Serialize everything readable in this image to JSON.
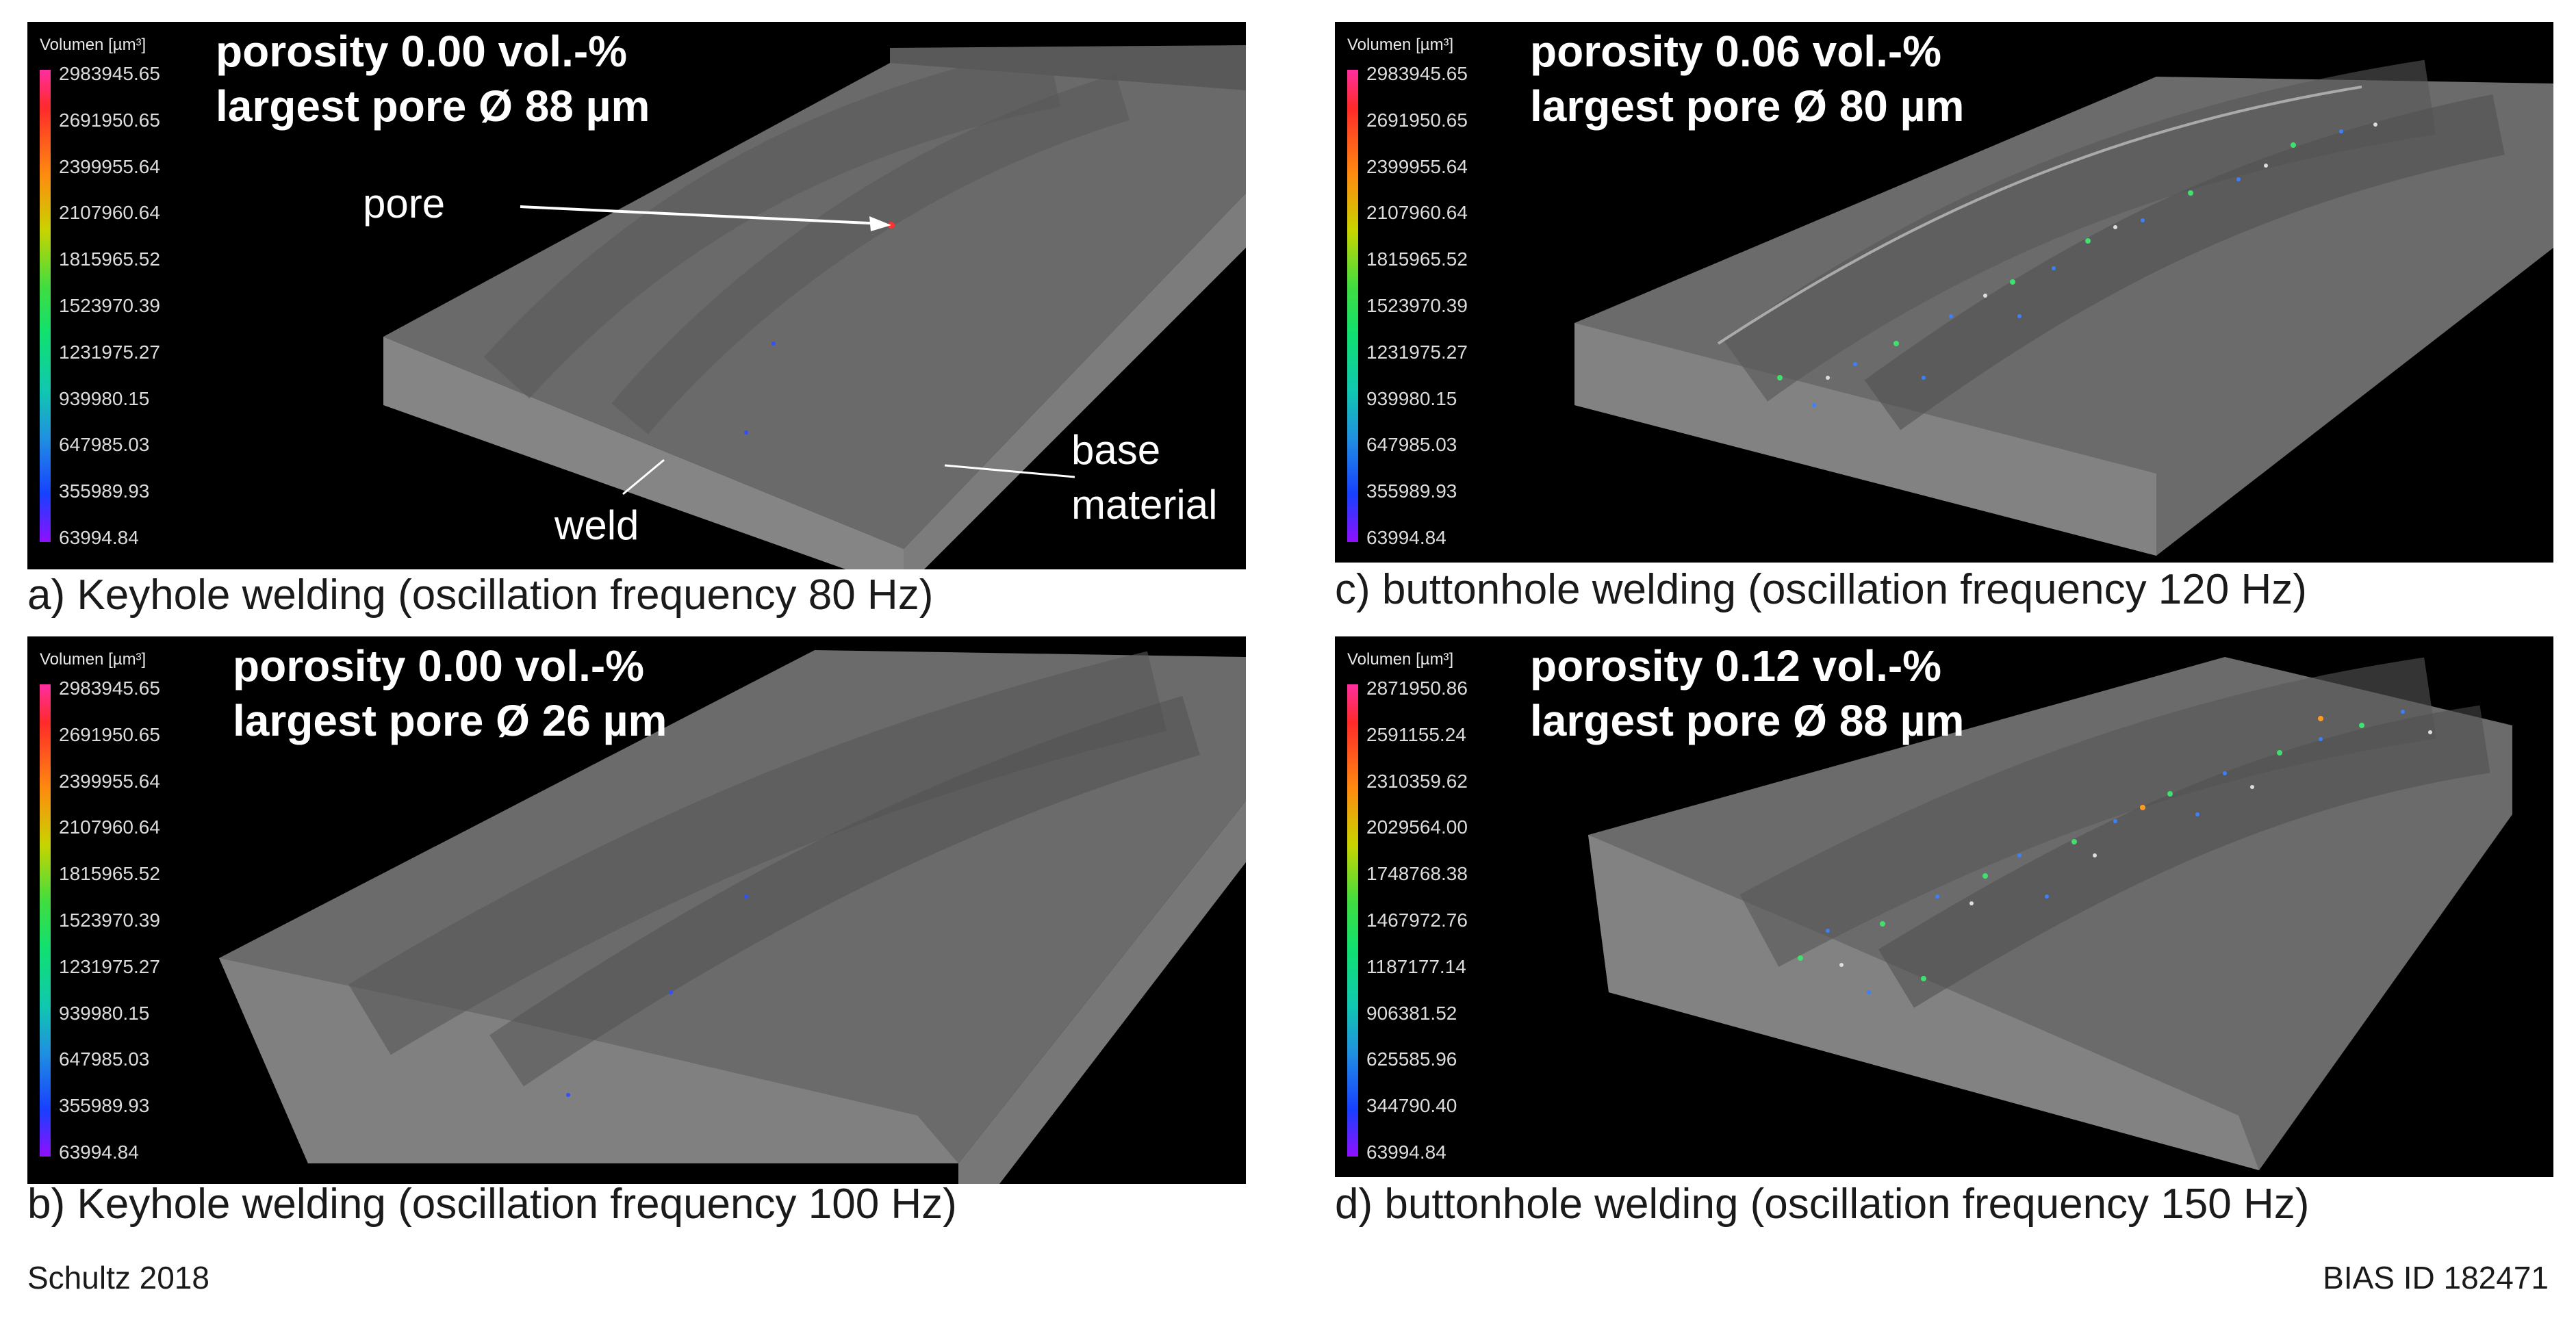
{
  "panels": [
    {
      "id": "a",
      "legend_title": "Volumen [µm³]",
      "legend_values": [
        "2983945.65",
        "2691950.65",
        "2399955.64",
        "2107960.64",
        "1815965.52",
        "1523970.39",
        "1231975.27",
        "939980.15",
        "647985.03",
        "355989.93",
        "63994.84"
      ],
      "porosity": "porosity 0.00 vol.-%",
      "largest_pore": "largest pore Ø 88 µm",
      "caption": "a) Keyhole welding (oscillation frequency 80 Hz)",
      "annotations": {
        "pore": "pore",
        "weld": "weld",
        "base": "base",
        "material": "material"
      }
    },
    {
      "id": "b",
      "legend_title": "Volumen [µm³]",
      "legend_values": [
        "2983945.65",
        "2691950.65",
        "2399955.64",
        "2107960.64",
        "1815965.52",
        "1523970.39",
        "1231975.27",
        "939980.15",
        "647985.03",
        "355989.93",
        "63994.84"
      ],
      "porosity": "porosity 0.00 vol.-%",
      "largest_pore": "largest pore Ø 26 µm",
      "caption": "b) Keyhole welding (oscillation frequency 100 Hz)"
    },
    {
      "id": "c",
      "legend_title": "Volumen [µm³]",
      "legend_values": [
        "2983945.65",
        "2691950.65",
        "2399955.64",
        "2107960.64",
        "1815965.52",
        "1523970.39",
        "1231975.27",
        "939980.15",
        "647985.03",
        "355989.93",
        "63994.84"
      ],
      "porosity": "porosity 0.06 vol.-%",
      "largest_pore": "largest pore Ø 80 µm",
      "caption": "c) buttonhole welding (oscillation frequency 120 Hz)"
    },
    {
      "id": "d",
      "legend_title": "Volumen [µm³]",
      "legend_values": [
        "2871950.86",
        "2591155.24",
        "2310359.62",
        "2029564.00",
        "1748768.38",
        "1467972.76",
        "1187177.14",
        "906381.52",
        "625585.96",
        "344790.40",
        "63994.84"
      ],
      "porosity": "porosity 0.12 vol.-%",
      "largest_pore": "largest pore Ø 88 µm",
      "caption": "d) buttonhole welding (oscillation frequency 150 Hz)"
    }
  ],
  "footer": {
    "left": "Schultz 2018",
    "right": "BIAS ID 182471"
  }
}
